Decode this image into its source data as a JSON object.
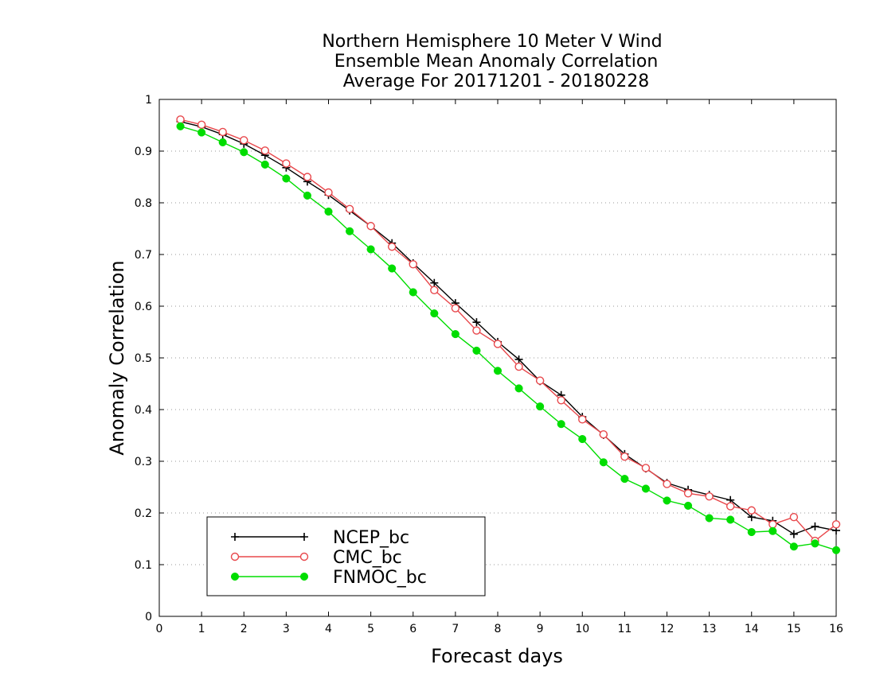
{
  "chart_data": {
    "type": "line",
    "title_lines": [
      "Northern Hemisphere 10 Meter V Wind",
      "Ensemble Mean Anomaly Correlation",
      "Average For 20171201 - 20180228"
    ],
    "xlabel": "Forecast days",
    "ylabel": "Anomaly Correlation",
    "xlim": [
      0,
      16
    ],
    "ylim": [
      0,
      1
    ],
    "x_ticks": [
      "0",
      "1",
      "2",
      "3",
      "4",
      "5",
      "6",
      "7",
      "8",
      "9",
      "10",
      "11",
      "12",
      "13",
      "14",
      "15",
      "16"
    ],
    "y_ticks": [
      "0",
      "0.1",
      "0.2",
      "0.3",
      "0.4",
      "0.5",
      "0.6",
      "0.7",
      "0.8",
      "0.9",
      "1"
    ],
    "grid": "horizontal dotted",
    "legend_position": "bottom-left",
    "x": [
      0.5,
      1,
      1.5,
      2,
      2.5,
      3,
      3.5,
      4,
      4.5,
      5,
      5.5,
      6,
      6.5,
      7,
      7.5,
      8,
      8.5,
      9,
      9.5,
      10,
      10.5,
      11,
      11.5,
      12,
      12.5,
      13,
      13.5,
      14,
      14.5,
      15,
      15.5,
      16
    ],
    "series": [
      {
        "name": "NCEP_bc",
        "color": "#000000",
        "marker": "plus",
        "values": [
          0.957,
          0.947,
          0.932,
          0.914,
          0.892,
          0.868,
          0.841,
          0.815,
          0.785,
          0.755,
          0.722,
          0.683,
          0.645,
          0.606,
          0.569,
          0.531,
          0.497,
          0.455,
          0.428,
          0.386,
          0.351,
          0.314,
          0.286,
          0.258,
          0.245,
          0.235,
          0.225,
          0.192,
          0.185,
          0.159,
          0.174,
          0.166
        ]
      },
      {
        "name": "CMC_bc",
        "color": "#e8484c",
        "marker": "open-circle",
        "values": [
          0.961,
          0.951,
          0.937,
          0.921,
          0.901,
          0.876,
          0.85,
          0.82,
          0.788,
          0.755,
          0.715,
          0.681,
          0.631,
          0.596,
          0.553,
          0.527,
          0.483,
          0.456,
          0.418,
          0.381,
          0.352,
          0.309,
          0.287,
          0.256,
          0.238,
          0.232,
          0.213,
          0.205,
          0.178,
          0.192,
          0.146,
          0.178
        ]
      },
      {
        "name": "FNMOC_bc",
        "color": "#00dd00",
        "marker": "filled-circle",
        "values": [
          0.948,
          0.936,
          0.917,
          0.898,
          0.874,
          0.847,
          0.814,
          0.783,
          0.745,
          0.71,
          0.673,
          0.627,
          0.586,
          0.546,
          0.514,
          0.475,
          0.441,
          0.406,
          0.372,
          0.343,
          0.298,
          0.266,
          0.247,
          0.224,
          0.214,
          0.19,
          0.187,
          0.163,
          0.165,
          0.135,
          0.141,
          0.128
        ]
      }
    ]
  }
}
